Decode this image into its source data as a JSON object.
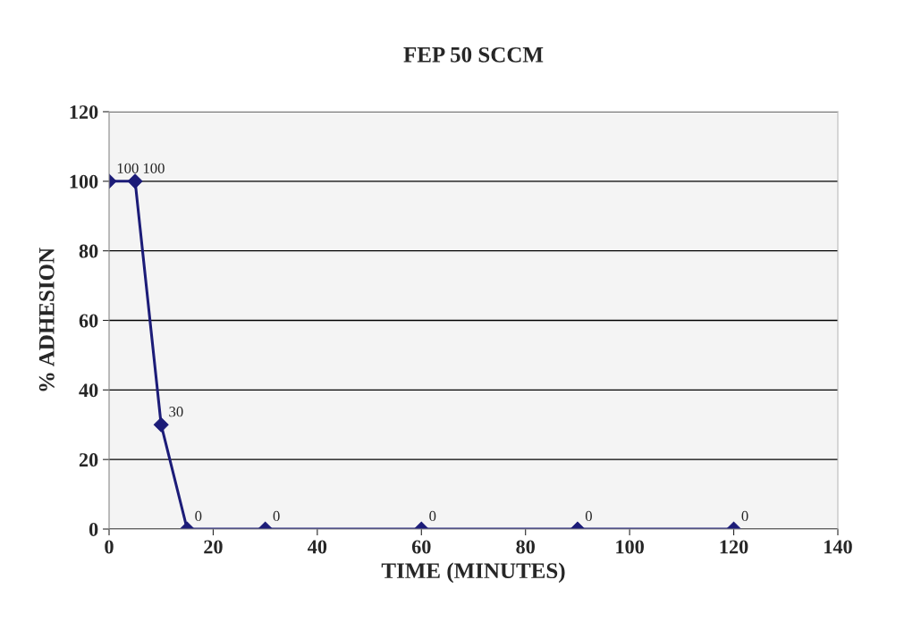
{
  "chart_data": {
    "type": "line",
    "title": "FEP 50 SCCM",
    "xlabel": "TIME (MINUTES)",
    "ylabel": "% ADHESION",
    "x": [
      0,
      5,
      10,
      15,
      30,
      60,
      90,
      120
    ],
    "series": [
      {
        "color": "#1c1c78",
        "values": [
          100,
          100,
          30,
          0,
          0,
          0,
          0,
          0
        ]
      }
    ],
    "xlim": [
      0,
      140
    ],
    "xticks": [
      0,
      20,
      40,
      60,
      80,
      100,
      120,
      140
    ],
    "ylim": [
      0,
      120
    ],
    "yticks": [
      0,
      20,
      40,
      60,
      80,
      100,
      120
    ],
    "grid": "y",
    "marker": "diamond",
    "line_style": "solid",
    "data_labels": true
  }
}
